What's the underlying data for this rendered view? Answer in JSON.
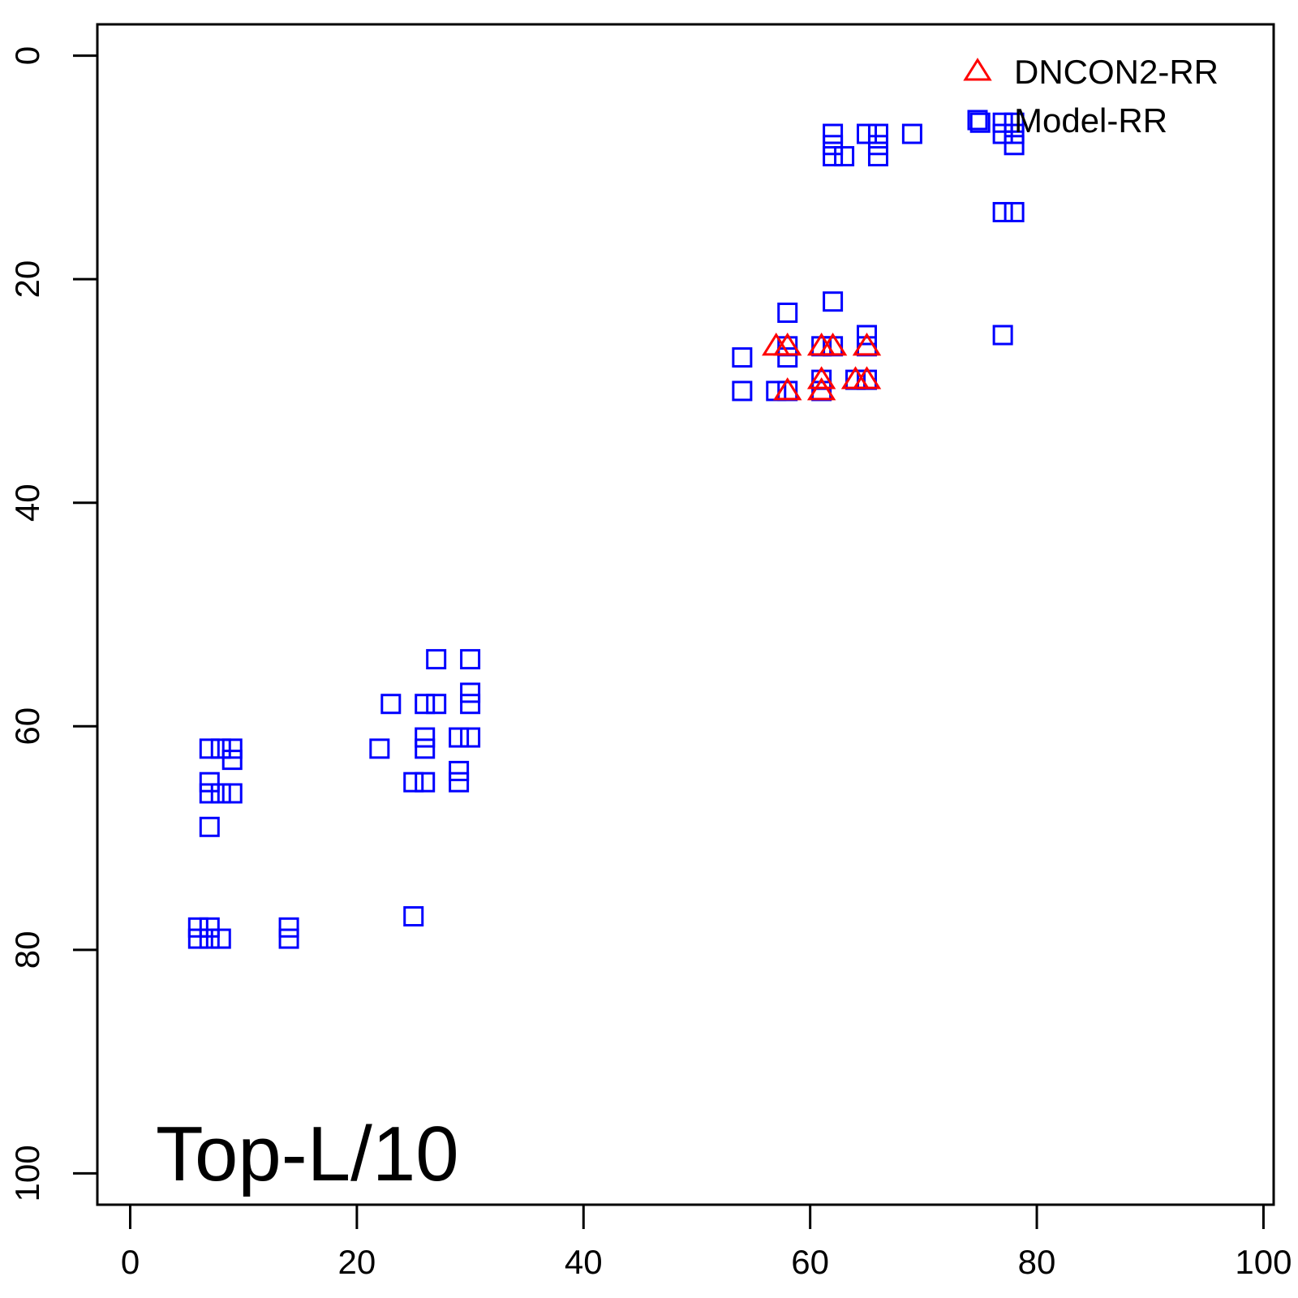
{
  "chart_data": {
    "type": "scatter",
    "title": "",
    "xlabel": "",
    "ylabel": "",
    "xlim": [
      -2.9,
      100.9
    ],
    "ylim": [
      102.8,
      -2.8
    ],
    "y_inverted": true,
    "x_ticks": [
      "0",
      "20",
      "40",
      "60",
      "80",
      "100"
    ],
    "x_tick_values": [
      0,
      20,
      40,
      60,
      80,
      100
    ],
    "y_ticks": [
      "0",
      "20",
      "40",
      "60",
      "80",
      "100"
    ],
    "y_tick_values": [
      0,
      20,
      40,
      60,
      80,
      100
    ],
    "grid": false,
    "legend_position": "top-right",
    "annotation": "Top-L/10",
    "series": [
      {
        "name": "DNCON2-RR",
        "marker": "triangle",
        "color": "#ff0000",
        "points": [
          [
            57,
            26
          ],
          [
            58,
            26
          ],
          [
            61,
            26
          ],
          [
            62,
            26
          ],
          [
            65,
            26
          ],
          [
            61,
            29
          ],
          [
            64,
            29
          ],
          [
            65,
            29
          ],
          [
            58,
            30
          ],
          [
            61,
            30
          ]
        ]
      },
      {
        "name": "Model-RR",
        "marker": "square",
        "color": "#0000ff",
        "points": [
          [
            75,
            6
          ],
          [
            77,
            6
          ],
          [
            78,
            6
          ],
          [
            62,
            7
          ],
          [
            65,
            7
          ],
          [
            66,
            7
          ],
          [
            69,
            7
          ],
          [
            77,
            7
          ],
          [
            78,
            7
          ],
          [
            62,
            8
          ],
          [
            66,
            8
          ],
          [
            78,
            8
          ],
          [
            62,
            9
          ],
          [
            63,
            9
          ],
          [
            66,
            9
          ],
          [
            77,
            14
          ],
          [
            78,
            14
          ],
          [
            62,
            22
          ],
          [
            58,
            23
          ],
          [
            65,
            25
          ],
          [
            77,
            25
          ],
          [
            58,
            26
          ],
          [
            61,
            26
          ],
          [
            62,
            26
          ],
          [
            65,
            26
          ],
          [
            54,
            27
          ],
          [
            58,
            27
          ],
          [
            61,
            29
          ],
          [
            64,
            29
          ],
          [
            65,
            29
          ],
          [
            54,
            30
          ],
          [
            57,
            30
          ],
          [
            58,
            30
          ],
          [
            61,
            30
          ],
          [
            27,
            54
          ],
          [
            30,
            54
          ],
          [
            30,
            57
          ],
          [
            23,
            58
          ],
          [
            26,
            58
          ],
          [
            27,
            58
          ],
          [
            30,
            58
          ],
          [
            26,
            61
          ],
          [
            29,
            61
          ],
          [
            30,
            61
          ],
          [
            7,
            62
          ],
          [
            8,
            62
          ],
          [
            9,
            62
          ],
          [
            22,
            62
          ],
          [
            26,
            62
          ],
          [
            9,
            63
          ],
          [
            29,
            64
          ],
          [
            7,
            65
          ],
          [
            25,
            65
          ],
          [
            26,
            65
          ],
          [
            29,
            65
          ],
          [
            7,
            66
          ],
          [
            8,
            66
          ],
          [
            9,
            66
          ],
          [
            7,
            69
          ],
          [
            25,
            77
          ],
          [
            6,
            78
          ],
          [
            7,
            78
          ],
          [
            14,
            78
          ],
          [
            6,
            79
          ],
          [
            7,
            79
          ],
          [
            8,
            79
          ],
          [
            14,
            79
          ]
        ]
      }
    ]
  }
}
